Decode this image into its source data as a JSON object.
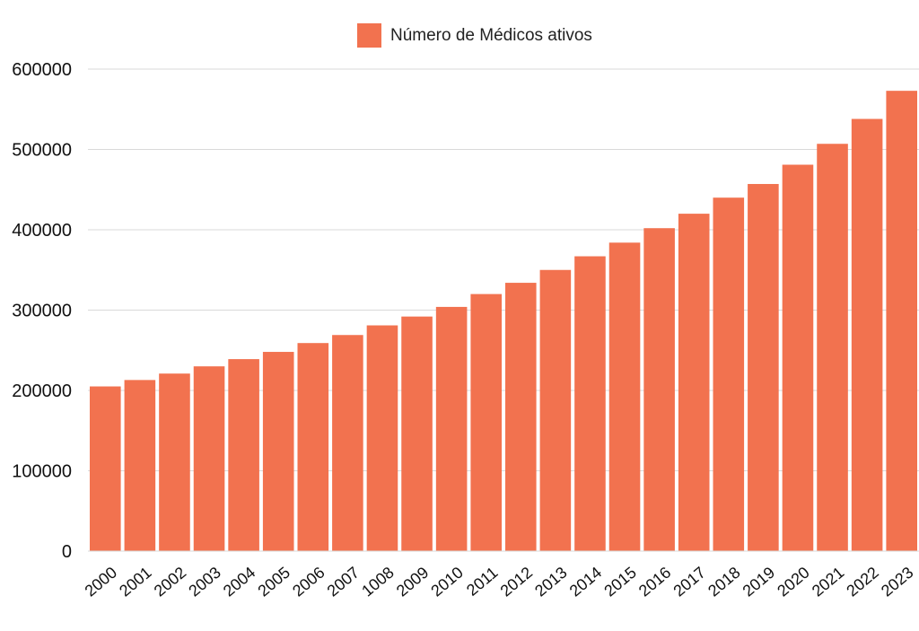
{
  "chart_data": {
    "type": "bar",
    "categories": [
      "2000",
      "2001",
      "2002",
      "2003",
      "2004",
      "2005",
      "2006",
      "2007",
      "1008",
      "2009",
      "2010",
      "2011",
      "2012",
      "2013",
      "2014",
      "2015",
      "2016",
      "2017",
      "2018",
      "2019",
      "2020",
      "2021",
      "2022",
      "2023"
    ],
    "series": [
      {
        "name": "Número de Médicos ativos",
        "values": [
          205000,
          213000,
          221000,
          230000,
          239000,
          248000,
          259000,
          269000,
          281000,
          292000,
          304000,
          320000,
          334000,
          350000,
          367000,
          384000,
          402000,
          420000,
          440000,
          457000,
          481000,
          507000,
          538000,
          573000
        ]
      }
    ],
    "yticks": [
      "0",
      "100000",
      "200000",
      "300000",
      "400000",
      "500000",
      "600000"
    ],
    "ylim": [
      0,
      600000
    ],
    "grid": true,
    "legend_position": "top-center",
    "colors": {
      "bar": "#F2724F",
      "grid": "#d9d9d9"
    }
  }
}
